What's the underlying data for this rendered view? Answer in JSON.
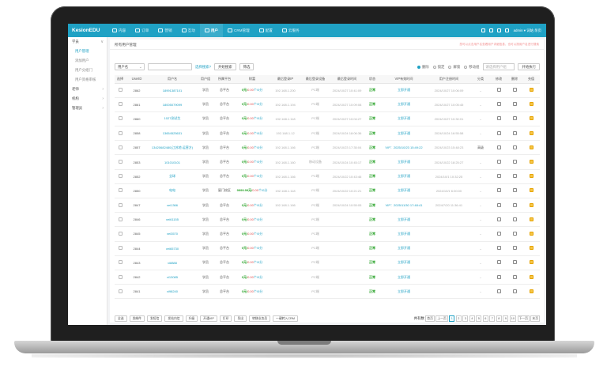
{
  "app": {
    "logo": "KesionEDU"
  },
  "nav": {
    "items": [
      {
        "label": "内容",
        "icon": "document-icon"
      },
      {
        "label": "订单",
        "icon": "calendar-icon"
      },
      {
        "label": "营销",
        "icon": "tag-icon"
      },
      {
        "label": "互动",
        "icon": "chat-icon"
      },
      {
        "label": "用户",
        "icon": "user-icon",
        "active": true
      },
      {
        "label": "CRM管理",
        "icon": "person-icon"
      },
      {
        "label": "配置",
        "icon": "gear-icon"
      },
      {
        "label": "云服务",
        "icon": "cloud-icon"
      }
    ],
    "user": "admin ▾  词站  杀页"
  },
  "sidebar": {
    "items": [
      {
        "label": "学员",
        "chev": "∨"
      },
      {
        "label": "用户管理",
        "sub": true,
        "active": true
      },
      {
        "label": "添加用户",
        "sub": true
      },
      {
        "label": "用户分组门",
        "sub": true
      },
      {
        "label": "用户资格审核",
        "sub": true
      },
      {
        "label": "老师",
        "chev": "›"
      },
      {
        "label": "机构",
        "chev": "›"
      },
      {
        "label": "管理员",
        "chev": "›"
      }
    ]
  },
  "main": {
    "breadcrumb": "所有用户管理",
    "tip": "您可以点击用户名查看用户详细信息，也可以按用户名进行搜索"
  },
  "filters": {
    "field_select": "用户名",
    "search_placeholder": "",
    "advanced_link": "选择搜索?",
    "search_button": "开始搜索",
    "filter_button": "筛选",
    "radios": [
      {
        "label": "删除",
        "on": true
      },
      {
        "label": "锁定",
        "on": false
      },
      {
        "label": "解锁",
        "on": false
      },
      {
        "label": "移动组",
        "on": false
      }
    ],
    "batch_select": "请选择用户组",
    "execute_button": "开始执行"
  },
  "table": {
    "headers": [
      "选择",
      "UserID",
      "用户名",
      "用户组",
      "所属平台",
      "财富",
      "最后登录IP",
      "最后登录设备",
      "最后登录时间",
      "状态",
      "VIP有效时间",
      "用户注册时间",
      "分类",
      "修改",
      "删除",
      "充值"
    ],
    "rows": [
      {
        "id": "2862",
        "name": "18991387101",
        "group": "学员",
        "platform": "总平台",
        "money": "0元/",
        "points": "0.00",
        "score": "个/0分",
        "ip": "192.168.1.200",
        "device": "PC端",
        "login": "2024/10/27 10:41:09",
        "status": "正常",
        "vip": "立即开通",
        "reg": "2024/10/27 10:06:09",
        "cat": "-"
      },
      {
        "id": "2861",
        "name": "18005079099",
        "group": "学员",
        "platform": "总平台",
        "money": "0元/",
        "points": "0.00",
        "score": "个/0分",
        "ip": "192.168.1.194",
        "device": "PC端",
        "login": "2024/10/27 10:09:08",
        "status": "正常",
        "vip": "立即开通",
        "reg": "2024/10/27 10:05:45",
        "cat": "-"
      },
      {
        "id": "2860",
        "name": "1027测试生",
        "group": "学员",
        "platform": "总平台",
        "money": "0元/",
        "points": "0.00",
        "score": "个/0分",
        "ip": "192.168.1.118",
        "device": "PC端",
        "login": "2024/10/27 10:04:27",
        "status": "正常",
        "vip": "立即开通",
        "reg": "2024/10/27 10:30:01",
        "cat": "-"
      },
      {
        "id": "2858",
        "name": "13654525631",
        "group": "学员",
        "platform": "总平台",
        "money": "0元/",
        "points": "0.00",
        "score": "个/0分",
        "ip": "192.168.1.12",
        "device": "PC端",
        "login": "2024/10/24 18:06:36",
        "status": "正常",
        "vip": "立即开通",
        "reg": "2024/10/24 16:55:58",
        "cat": "-"
      },
      {
        "id": "2857",
        "name": "13420682480(江苏地.运营方)",
        "group": "学员",
        "platform": "总平台",
        "money": "0元/",
        "points": "0.00",
        "score": "个/0分",
        "ip": "192.168.1.166",
        "device": "PC端",
        "login": "2024/10/23 17:35:04",
        "status": "正常",
        "vip": "VIP：2025/10/23 15:49:22",
        "reg": "2024/10/23 15:48:23",
        "cat": "高级"
      },
      {
        "id": "2853",
        "name": "101010101",
        "group": "学员",
        "platform": "总平台",
        "money": "0元/",
        "points": "0.00",
        "score": "个/0分",
        "ip": "192.168.1.160",
        "device": "移动设备",
        "login": "2024/10/24 10:45:17",
        "status": "正常",
        "vip": "立即开通",
        "reg": "2024/10/22 18:25:27",
        "cat": "-"
      },
      {
        "id": "2852",
        "name": "全球",
        "group": "学员",
        "platform": "总平台",
        "money": "0元/",
        "points": "0.00",
        "score": "个/0分",
        "ip": "192.168.1.166",
        "device": "PC端",
        "login": "2024/10/22 10:43:46",
        "status": "正常",
        "vip": "立即开通",
        "reg": "2024/10/1 10:32:25",
        "cat": "-"
      },
      {
        "id": "2850",
        "name": "电电",
        "group": "学员",
        "platform": "厦门校区",
        "money": "9999.99元/",
        "points": "0.00",
        "score": "个/0分",
        "ip": "192.168.1.118",
        "device": "PC端",
        "login": "2024/10/22 10:21:21",
        "status": "正常",
        "vip": "立即开通",
        "reg": "2024/10/1 6:00:00",
        "cat": "-"
      },
      {
        "id": "2847",
        "name": "vei1366",
        "group": "学员",
        "platform": "总平台",
        "money": "0元/",
        "points": "0.00",
        "score": "个/0分",
        "ip": "192.168.1.166",
        "device": "PC端",
        "login": "2024/10/24 10:55:05",
        "status": "正常",
        "vip": "VIP：2025/11/30 17:48:41",
        "reg": "2024/7/20 11:36:41",
        "cat": "-"
      },
      {
        "id": "2846",
        "name": "vei61155",
        "group": "学员",
        "platform": "总平台",
        "money": "0元/",
        "points": "0.00",
        "score": "个/0分",
        "ip": "",
        "device": "PC端",
        "login": "",
        "status": "正常",
        "vip": "立即开通",
        "reg": "",
        "cat": "-"
      },
      {
        "id": "2845",
        "name": "vei3570",
        "group": "学员",
        "platform": "总平台",
        "money": "0元/",
        "points": "0.00",
        "score": "个/0分",
        "ip": "",
        "device": "PC端",
        "login": "",
        "status": "正常",
        "vip": "立即开通",
        "reg": "",
        "cat": "-"
      },
      {
        "id": "2844",
        "name": "vei65730",
        "group": "学员",
        "platform": "总平台",
        "money": "0元/",
        "points": "0.00",
        "score": "个/0分",
        "ip": "",
        "device": "PC端",
        "login": "",
        "status": "正常",
        "vip": "立即开通",
        "reg": "",
        "cat": "-"
      },
      {
        "id": "2843",
        "name": "vi8888",
        "group": "学员",
        "platform": "总平台",
        "money": "0元/",
        "points": "0.00",
        "score": "个/0分",
        "ip": "",
        "device": "PC端",
        "login": "",
        "status": "正常",
        "vip": "立即开通",
        "reg": "",
        "cat": "-"
      },
      {
        "id": "2842",
        "name": "vi13085",
        "group": "学员",
        "platform": "总平台",
        "money": "0元/",
        "points": "0.00",
        "score": "个/0分",
        "ip": "",
        "device": "PC端",
        "login": "",
        "status": "正常",
        "vip": "立即开通",
        "reg": "",
        "cat": "-"
      },
      {
        "id": "2841",
        "name": "vi98240",
        "group": "学员",
        "platform": "总平台",
        "money": "0元/",
        "points": "0.00",
        "score": "个/0分",
        "ip": "",
        "device": "PC端",
        "login": "",
        "status": "正常",
        "vip": "立即开通",
        "reg": "",
        "cat": "-"
      }
    ]
  },
  "footer": {
    "buttons": [
      "全选",
      "发邮件",
      "发短信",
      "发站内信",
      "升级",
      "开通VIP",
      "打印",
      "导出",
      "转移业务员",
      "一键转入CRM"
    ],
    "total": "共有数",
    "prev": "上一页",
    "pages": [
      "1",
      "2",
      "3",
      "4",
      "5",
      "6",
      "7",
      "8",
      "9",
      "10"
    ],
    "next": "下一页",
    "last": "末页",
    "first": "首页"
  },
  "colors": {
    "accent": "#1fa1c4",
    "green": "#2aa32a",
    "red": "#e04b4b"
  }
}
